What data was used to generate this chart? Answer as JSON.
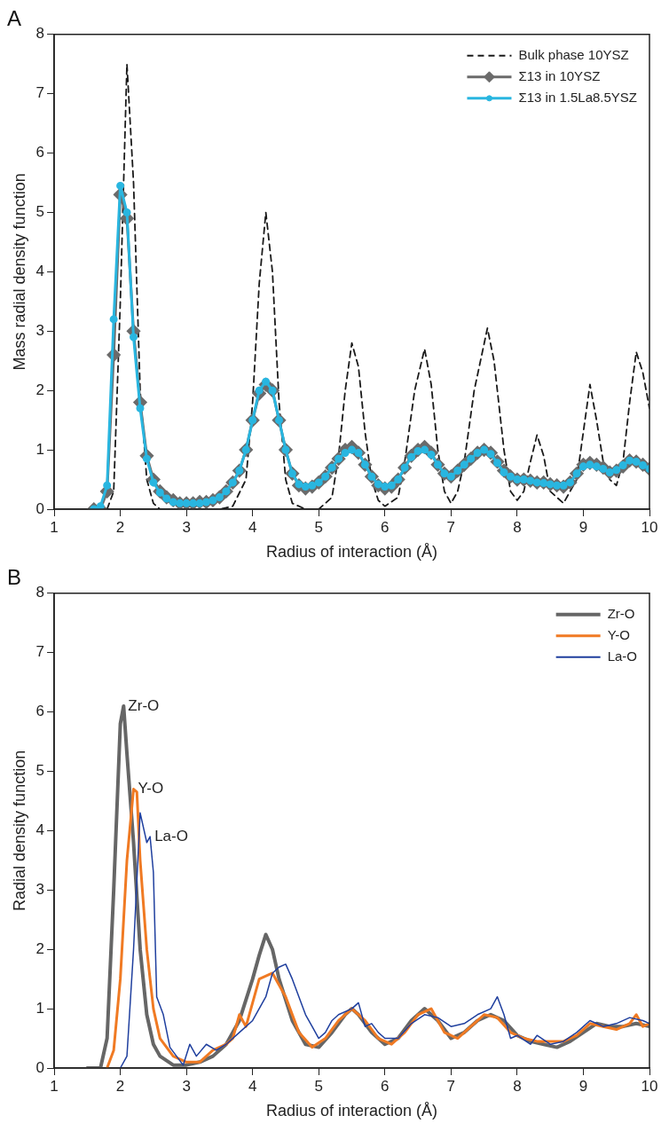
{
  "chart_data": [
    {
      "type": "line",
      "title": "A",
      "xlabel": "Radius of interaction (Å)",
      "ylabel": "Mass radial density function",
      "xlim": [
        1,
        10
      ],
      "xticks": [
        1,
        2,
        3,
        4,
        5,
        6,
        7,
        8,
        9,
        10
      ],
      "ylim": [
        0,
        8
      ],
      "yticks": [
        0,
        1,
        2,
        3,
        4,
        5,
        6,
        7,
        8
      ],
      "grid": false,
      "legend": "top right",
      "series": [
        {
          "name": "Bulk phase 10YSZ",
          "color": "#1a1a1a",
          "line_style": "dashed",
          "marker": "none",
          "x": [
            1.8,
            1.9,
            2.0,
            2.1,
            2.2,
            2.3,
            2.4,
            2.5,
            2.6,
            3.5,
            3.7,
            3.9,
            4.0,
            4.1,
            4.2,
            4.3,
            4.4,
            4.5,
            4.6,
            4.8,
            5.0,
            5.2,
            5.3,
            5.4,
            5.5,
            5.6,
            5.7,
            5.8,
            5.9,
            6.0,
            6.2,
            6.3,
            6.45,
            6.6,
            6.7,
            6.8,
            6.9,
            7.0,
            7.1,
            7.2,
            7.35,
            7.55,
            7.65,
            7.8,
            7.9,
            8.0,
            8.1,
            8.2,
            8.3,
            8.4,
            8.5,
            8.7,
            8.9,
            9.0,
            9.1,
            9.2,
            9.3,
            9.4,
            9.5,
            9.6,
            9.7,
            9.8,
            9.9,
            10.0
          ],
          "values": [
            0,
            0.3,
            3.5,
            7.5,
            5.5,
            2.0,
            0.5,
            0.1,
            0,
            0,
            0.05,
            0.5,
            1.8,
            3.8,
            5.0,
            4.0,
            1.8,
            0.5,
            0.1,
            0,
            0,
            0.2,
            0.9,
            2.0,
            2.8,
            2.4,
            1.3,
            0.5,
            0.15,
            0.05,
            0.2,
            0.8,
            2.0,
            2.7,
            2.1,
            1.0,
            0.3,
            0.1,
            0.3,
            0.8,
            2.0,
            3.05,
            2.5,
            1.0,
            0.3,
            0.15,
            0.3,
            0.8,
            1.25,
            0.9,
            0.3,
            0.1,
            0.5,
            1.3,
            2.1,
            1.5,
            0.8,
            0.5,
            0.4,
            0.8,
            1.8,
            2.65,
            2.3,
            1.7
          ]
        },
        {
          "name": "Σ13 in 10YSZ",
          "color": "#6b6b6b",
          "line_style": "solid",
          "marker": "diamond",
          "x": [
            1.6,
            1.7,
            1.8,
            1.9,
            2.0,
            2.1,
            2.2,
            2.3,
            2.4,
            2.5,
            2.6,
            2.7,
            2.8,
            2.9,
            3.0,
            3.1,
            3.2,
            3.3,
            3.4,
            3.5,
            3.6,
            3.7,
            3.8,
            3.9,
            4.0,
            4.1,
            4.2,
            4.3,
            4.4,
            4.5,
            4.6,
            4.7,
            4.8,
            4.9,
            5.0,
            5.1,
            5.2,
            5.3,
            5.4,
            5.5,
            5.6,
            5.7,
            5.8,
            5.9,
            6.0,
            6.1,
            6.2,
            6.3,
            6.4,
            6.5,
            6.6,
            6.7,
            6.8,
            6.9,
            7.0,
            7.1,
            7.2,
            7.3,
            7.4,
            7.5,
            7.6,
            7.7,
            7.8,
            7.9,
            8.0,
            8.1,
            8.2,
            8.3,
            8.4,
            8.5,
            8.6,
            8.7,
            8.8,
            8.9,
            9.0,
            9.1,
            9.2,
            9.3,
            9.4,
            9.5,
            9.6,
            9.7,
            9.8,
            9.9,
            10.0
          ],
          "values": [
            0,
            0,
            0.3,
            2.6,
            5.3,
            4.9,
            3.0,
            1.8,
            0.9,
            0.5,
            0.3,
            0.2,
            0.15,
            0.1,
            0.1,
            0.1,
            0.12,
            0.12,
            0.15,
            0.2,
            0.3,
            0.45,
            0.65,
            1.0,
            1.5,
            1.95,
            2.1,
            2.0,
            1.5,
            1.0,
            0.6,
            0.4,
            0.35,
            0.38,
            0.45,
            0.55,
            0.7,
            0.85,
            1.0,
            1.05,
            0.95,
            0.75,
            0.55,
            0.4,
            0.35,
            0.38,
            0.5,
            0.7,
            0.9,
            1.0,
            1.05,
            0.95,
            0.75,
            0.6,
            0.55,
            0.65,
            0.75,
            0.85,
            0.95,
            1.0,
            0.95,
            0.8,
            0.65,
            0.55,
            0.5,
            0.5,
            0.48,
            0.45,
            0.45,
            0.42,
            0.4,
            0.38,
            0.45,
            0.6,
            0.75,
            0.78,
            0.75,
            0.7,
            0.62,
            0.65,
            0.72,
            0.82,
            0.8,
            0.75,
            0.68
          ]
        },
        {
          "name": "Σ13 in 1.5La8.5YSZ",
          "color": "#29b6e0",
          "line_style": "solid",
          "marker": "circle",
          "x": [
            1.6,
            1.7,
            1.8,
            1.9,
            2.0,
            2.1,
            2.2,
            2.3,
            2.4,
            2.5,
            2.6,
            2.7,
            2.8,
            2.9,
            3.0,
            3.1,
            3.2,
            3.3,
            3.4,
            3.5,
            3.6,
            3.7,
            3.8,
            3.9,
            4.0,
            4.1,
            4.2,
            4.3,
            4.4,
            4.5,
            4.6,
            4.7,
            4.8,
            4.9,
            5.0,
            5.1,
            5.2,
            5.3,
            5.4,
            5.5,
            5.6,
            5.7,
            5.8,
            5.9,
            6.0,
            6.1,
            6.2,
            6.3,
            6.4,
            6.5,
            6.6,
            6.7,
            6.8,
            6.9,
            7.0,
            7.1,
            7.2,
            7.3,
            7.4,
            7.5,
            7.6,
            7.7,
            7.8,
            7.9,
            8.0,
            8.1,
            8.2,
            8.3,
            8.4,
            8.5,
            8.6,
            8.7,
            8.8,
            8.9,
            9.0,
            9.1,
            9.2,
            9.3,
            9.4,
            9.5,
            9.6,
            9.7,
            9.8,
            9.9,
            10.0
          ],
          "values": [
            0,
            0.05,
            0.4,
            3.2,
            5.45,
            5.0,
            2.9,
            1.7,
            0.85,
            0.45,
            0.28,
            0.18,
            0.12,
            0.1,
            0.1,
            0.1,
            0.1,
            0.12,
            0.15,
            0.2,
            0.3,
            0.45,
            0.65,
            1.0,
            1.5,
            2.0,
            2.15,
            2.0,
            1.5,
            1.0,
            0.6,
            0.42,
            0.38,
            0.4,
            0.45,
            0.55,
            0.7,
            0.85,
            0.95,
            1.0,
            0.95,
            0.75,
            0.55,
            0.42,
            0.38,
            0.4,
            0.5,
            0.7,
            0.88,
            0.98,
            1.0,
            0.92,
            0.75,
            0.6,
            0.55,
            0.65,
            0.75,
            0.85,
            0.95,
            1.0,
            0.93,
            0.78,
            0.62,
            0.55,
            0.5,
            0.5,
            0.48,
            0.45,
            0.44,
            0.42,
            0.4,
            0.4,
            0.45,
            0.6,
            0.72,
            0.75,
            0.72,
            0.68,
            0.62,
            0.66,
            0.74,
            0.82,
            0.8,
            0.74,
            0.68
          ]
        }
      ]
    },
    {
      "type": "line",
      "title": "B",
      "xlabel": "Radius of interaction (Å)",
      "ylabel": "Radial density function",
      "xlim": [
        1,
        10
      ],
      "xticks": [
        1,
        2,
        3,
        4,
        5,
        6,
        7,
        8,
        9,
        10
      ],
      "ylim": [
        0,
        8
      ],
      "yticks": [
        0,
        1,
        2,
        3,
        4,
        5,
        6,
        7,
        8
      ],
      "grid": false,
      "legend": "top right",
      "annotations": [
        {
          "text": "Zr-O",
          "x": 2.05,
          "y": 6.1
        },
        {
          "text": "Y-O",
          "x": 2.2,
          "y": 4.7
        },
        {
          "text": "La-O",
          "x": 2.45,
          "y": 3.9
        }
      ],
      "series": [
        {
          "name": "Zr-O",
          "color": "#666666",
          "x": [
            1.5,
            1.7,
            1.8,
            1.9,
            2.0,
            2.05,
            2.1,
            2.2,
            2.3,
            2.4,
            2.5,
            2.6,
            2.8,
            3.0,
            3.2,
            3.4,
            3.6,
            3.8,
            4.0,
            4.1,
            4.2,
            4.3,
            4.4,
            4.6,
            4.8,
            5.0,
            5.2,
            5.4,
            5.5,
            5.6,
            5.8,
            6.0,
            6.2,
            6.4,
            6.6,
            6.8,
            7.0,
            7.2,
            7.4,
            7.6,
            7.8,
            8.0,
            8.2,
            8.4,
            8.6,
            8.8,
            9.0,
            9.2,
            9.4,
            9.6,
            9.8,
            10.0
          ],
          "values": [
            0,
            0,
            0.5,
            3.0,
            5.8,
            6.1,
            5.3,
            3.8,
            2.0,
            0.9,
            0.4,
            0.2,
            0.05,
            0.05,
            0.1,
            0.2,
            0.4,
            0.8,
            1.5,
            1.9,
            2.25,
            2.0,
            1.5,
            0.8,
            0.4,
            0.35,
            0.6,
            0.9,
            1.0,
            0.9,
            0.6,
            0.4,
            0.5,
            0.8,
            1.0,
            0.8,
            0.5,
            0.6,
            0.8,
            0.9,
            0.8,
            0.55,
            0.45,
            0.4,
            0.35,
            0.45,
            0.6,
            0.75,
            0.7,
            0.7,
            0.75,
            0.7
          ]
        },
        {
          "name": "Y-O",
          "color": "#f07a23",
          "x": [
            1.8,
            1.9,
            2.0,
            2.1,
            2.2,
            2.25,
            2.3,
            2.4,
            2.5,
            2.6,
            2.8,
            3.0,
            3.2,
            3.4,
            3.6,
            3.7,
            3.8,
            3.9,
            4.0,
            4.1,
            4.3,
            4.5,
            4.7,
            4.9,
            5.1,
            5.3,
            5.5,
            5.7,
            5.9,
            6.1,
            6.3,
            6.5,
            6.7,
            6.9,
            7.1,
            7.3,
            7.5,
            7.7,
            7.9,
            8.1,
            8.3,
            8.5,
            8.7,
            8.9,
            9.1,
            9.3,
            9.5,
            9.7,
            9.8,
            9.9,
            10.0
          ],
          "values": [
            0,
            0.3,
            1.5,
            3.5,
            4.7,
            4.65,
            3.5,
            2.0,
            1.0,
            0.5,
            0.2,
            0.1,
            0.1,
            0.3,
            0.4,
            0.5,
            0.9,
            0.7,
            1.1,
            1.5,
            1.6,
            1.2,
            0.6,
            0.35,
            0.5,
            0.8,
            1.0,
            0.8,
            0.5,
            0.4,
            0.6,
            0.9,
            1.0,
            0.6,
            0.5,
            0.7,
            0.9,
            0.85,
            0.6,
            0.5,
            0.45,
            0.45,
            0.45,
            0.55,
            0.75,
            0.7,
            0.65,
            0.75,
            0.9,
            0.7,
            0.75
          ]
        },
        {
          "name": "La-O",
          "color": "#1f3f9e",
          "x": [
            2.0,
            2.1,
            2.2,
            2.3,
            2.4,
            2.45,
            2.5,
            2.55,
            2.65,
            2.75,
            2.85,
            2.95,
            3.05,
            3.15,
            3.3,
            3.45,
            3.6,
            3.8,
            4.0,
            4.2,
            4.3,
            4.4,
            4.5,
            4.6,
            4.7,
            4.8,
            4.9,
            5.0,
            5.1,
            5.2,
            5.3,
            5.5,
            5.6,
            5.7,
            5.8,
            5.9,
            6.0,
            6.2,
            6.4,
            6.6,
            6.8,
            7.0,
            7.2,
            7.4,
            7.6,
            7.7,
            7.8,
            7.9,
            8.0,
            8.2,
            8.3,
            8.5,
            8.7,
            8.9,
            9.1,
            9.3,
            9.5,
            9.7,
            9.9,
            10.0
          ],
          "values": [
            0,
            0.2,
            2.0,
            4.3,
            3.8,
            3.9,
            3.3,
            1.2,
            0.9,
            0.35,
            0.2,
            0.05,
            0.4,
            0.2,
            0.4,
            0.3,
            0.4,
            0.6,
            0.8,
            1.2,
            1.6,
            1.7,
            1.75,
            1.5,
            1.2,
            0.9,
            0.7,
            0.5,
            0.6,
            0.8,
            0.9,
            1.0,
            1.1,
            0.7,
            0.75,
            0.6,
            0.5,
            0.5,
            0.75,
            0.9,
            0.85,
            0.7,
            0.75,
            0.9,
            1.0,
            1.2,
            0.9,
            0.5,
            0.55,
            0.4,
            0.55,
            0.4,
            0.45,
            0.6,
            0.8,
            0.7,
            0.75,
            0.85,
            0.8,
            0.75
          ]
        }
      ]
    }
  ]
}
